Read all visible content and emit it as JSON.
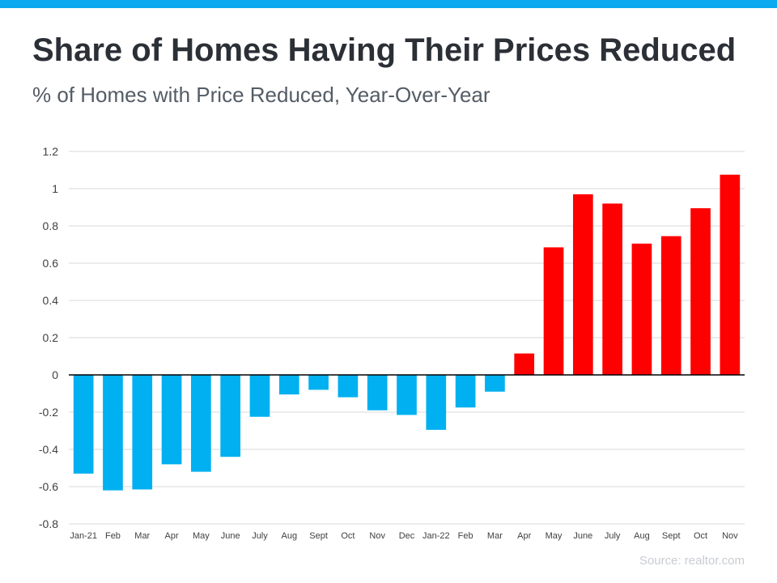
{
  "colors": {
    "top_bar": "#0aa9f0",
    "negative": "#00b0f0",
    "positive": "#ff0000",
    "grid": "#d9d9d9",
    "zero_line": "#000000",
    "tick_text": "#404040"
  },
  "chart_data": {
    "type": "bar",
    "title": "Share of Homes Having Their Prices Reduced",
    "subtitle": "% of Homes with Price Reduced, Year-Over-Year",
    "xlabel": "",
    "ylabel": "",
    "ylim": [
      -0.8,
      1.2
    ],
    "yticks": [
      1.2,
      1,
      0.8,
      0.6,
      0.4,
      0.2,
      0,
      -0.2,
      -0.4,
      -0.6,
      -0.8
    ],
    "grid": true,
    "categories": [
      "Jan-21",
      "Feb",
      "Mar",
      "Apr",
      "May",
      "June",
      "July",
      "Aug",
      "Sept",
      "Oct",
      "Nov",
      "Dec",
      "Jan-22",
      "Feb",
      "Mar",
      "Apr",
      "May",
      "June",
      "July",
      "Aug",
      "Sept",
      "Oct",
      "Nov"
    ],
    "values": [
      -0.53,
      -0.62,
      -0.615,
      -0.48,
      -0.52,
      -0.44,
      -0.225,
      -0.105,
      -0.08,
      -0.12,
      -0.19,
      -0.215,
      -0.295,
      -0.175,
      -0.09,
      0.115,
      0.685,
      0.97,
      0.92,
      0.705,
      0.745,
      0.895,
      1.075
    ],
    "source": "Source: realtor.com"
  }
}
